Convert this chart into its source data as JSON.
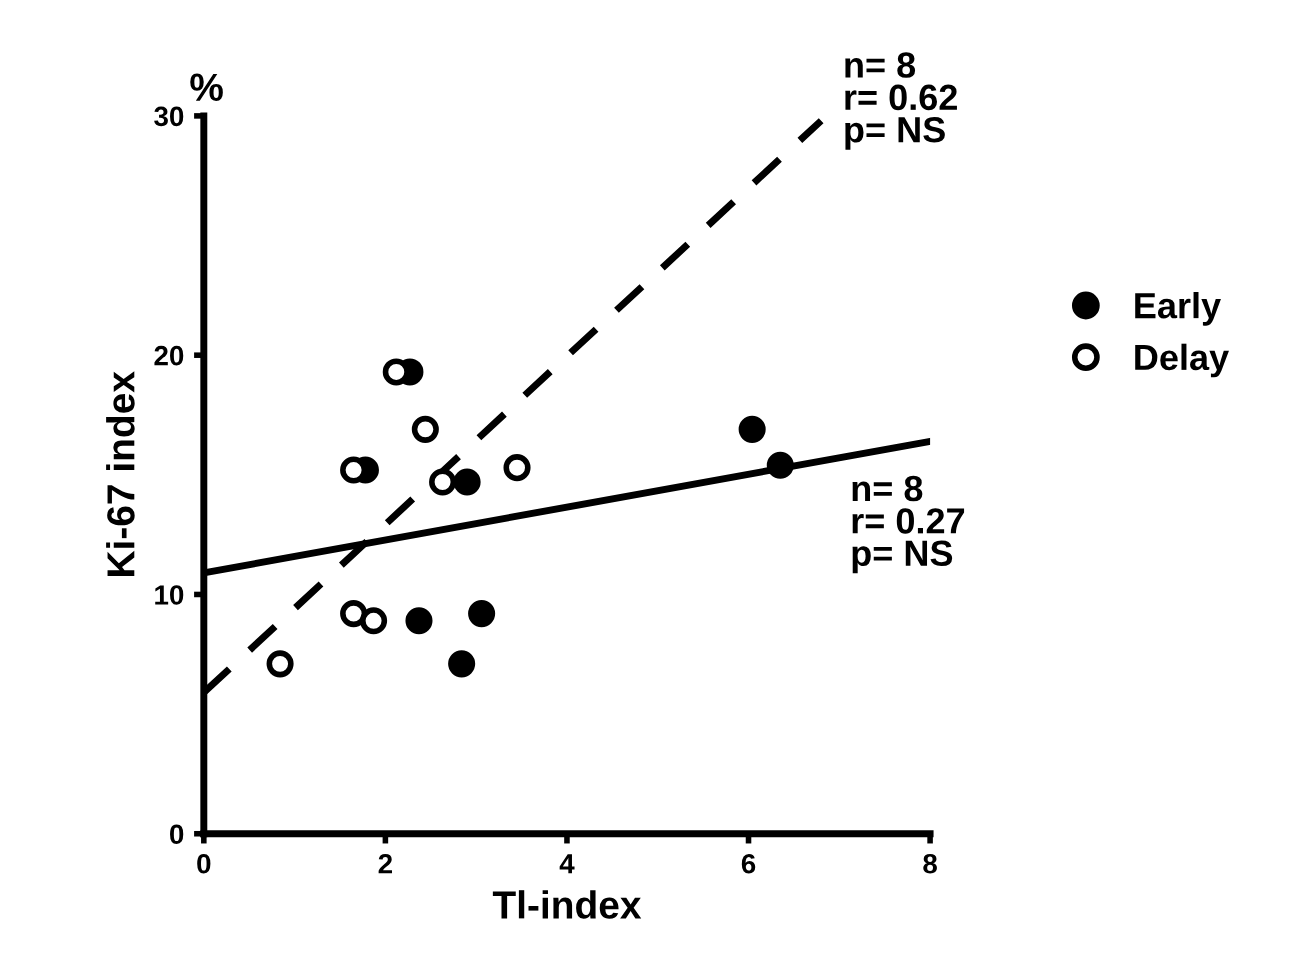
{
  "chart_data": {
    "type": "scatter",
    "xlabel": "Tl-index",
    "ylabel": "Ki-67 index",
    "xlim": [
      0,
      8
    ],
    "ylim": [
      0,
      30
    ],
    "xticks": [
      0,
      2,
      4,
      6,
      8
    ],
    "yticks": [
      0,
      10,
      20,
      30
    ],
    "grid": false,
    "legend": "right",
    "marker": "circle",
    "series": [
      {
        "name": "Early",
        "color": "#000000",
        "x": [
          2.27,
          1.78,
          2.9,
          6.04,
          6.35,
          2.37,
          3.06,
          2.84
        ],
        "values": [
          19.3,
          15.2,
          14.7,
          16.9,
          15.4,
          8.9,
          9.2,
          7.1
        ]
      },
      {
        "name": "Delay",
        "color": "#ffffff",
        "x": [
          2.12,
          2.44,
          1.65,
          2.63,
          3.45,
          1.65,
          1.87,
          0.84
        ],
        "values": [
          19.3,
          16.9,
          15.2,
          14.7,
          15.3,
          9.2,
          8.9,
          7.1
        ]
      },
      {
        "type": "line",
        "color": "#000000",
        "line_style": "dashed",
        "marker": "none",
        "x": [
          0,
          6.8
        ],
        "values": [
          5.9,
          29.8
        ]
      },
      {
        "type": "line",
        "color": "#000000",
        "line_style": "solid",
        "marker": "none",
        "x": [
          0,
          8
        ],
        "values": [
          10.9,
          16.4
        ]
      }
    ],
    "annotations": [
      "%",
      "n= 8\nr= 0.62\np= NS",
      "n= 8\nr= 0.27\np= NS"
    ]
  }
}
